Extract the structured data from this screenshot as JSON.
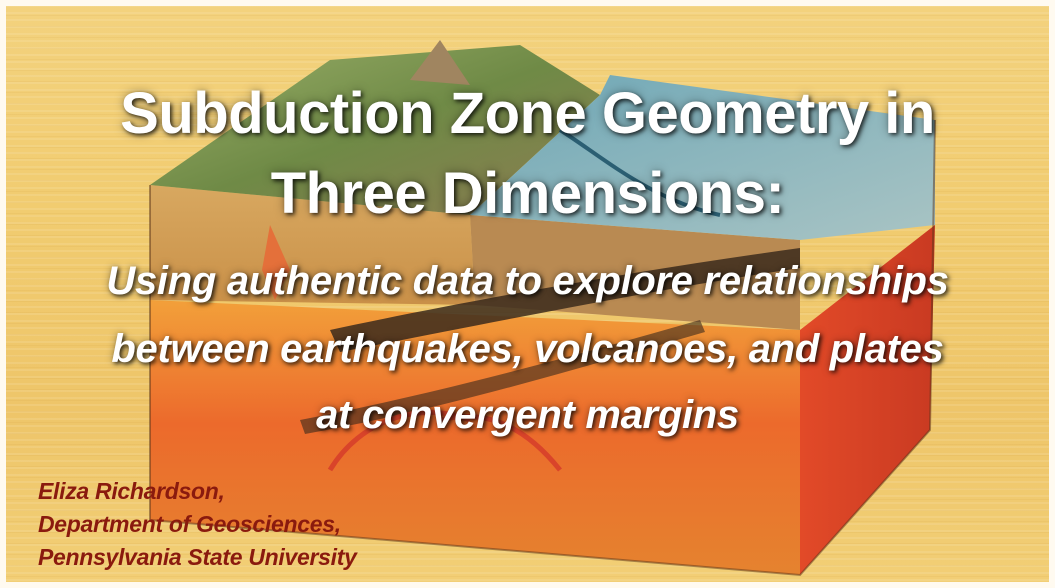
{
  "title": {
    "line1": "Subduction Zone Geometry in",
    "line2": "Three Dimensions:"
  },
  "subtitle": {
    "line1": "Using authentic data to explore relationships",
    "line2": "between earthquakes, volcanoes, and plates",
    "line3": "at convergent margins"
  },
  "author": {
    "name": "Eliza Richardson,",
    "department": "Department of Geosciences,",
    "university": "Pennsylvania State University"
  },
  "colors": {
    "background": "#f1cc70",
    "title_text": "#ffffff",
    "author_text": "#8a1a0e",
    "mantle": "#e8572a",
    "ocean": "#7fb0bd",
    "land": "#7f9a55"
  }
}
